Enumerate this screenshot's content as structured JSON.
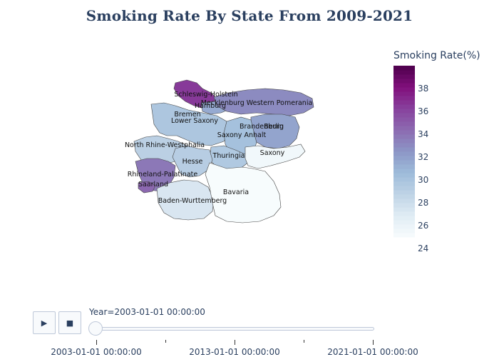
{
  "title": "Smoking Rate By State From 2009-2021",
  "colorbar": {
    "title": "Smoking Rate(%)",
    "min": 24,
    "max": 39,
    "ticks": [
      24,
      26,
      28,
      30,
      32,
      34,
      36,
      38
    ]
  },
  "chart_data": {
    "type": "choropleth",
    "title": "Smoking Rate By State From 2009-2021",
    "color_label": "Smoking Rate(%)",
    "regions": [
      {
        "name": "Schleswig-Holstein",
        "value": 35.5
      },
      {
        "name": "Hamburg",
        "value": 30.5
      },
      {
        "name": "Mecklenburg Western Pomerania",
        "value": 32.0
      },
      {
        "name": "Bremen",
        "value": 29.5
      },
      {
        "name": "Lower Saxony",
        "value": 28.8
      },
      {
        "name": "Berlin",
        "value": 38.5
      },
      {
        "name": "Brandenburg",
        "value": 30.8
      },
      {
        "name": "Saxony Anhalt",
        "value": 29.2
      },
      {
        "name": "North Rhine-Westphalia",
        "value": 28.0
      },
      {
        "name": "Thuringia",
        "value": 28.6
      },
      {
        "name": "Saxony",
        "value": 24.5
      },
      {
        "name": "Hesse",
        "value": 28.2
      },
      {
        "name": "Rhineland-Palatinate",
        "value": 32.8
      },
      {
        "name": "Saarland",
        "value": 33.5
      },
      {
        "name": "Baden-Wurttemberg",
        "value": 26.3
      },
      {
        "name": "Bavaria",
        "value": 24.0
      }
    ]
  },
  "animation": {
    "play_icon": "▶",
    "stop_icon": "■",
    "current_label": "Year=2003-01-01 00:00:00",
    "ticks": [
      {
        "label": "2003-01-01 00:00:00"
      },
      {
        "label": ""
      },
      {
        "label": "2013-01-01 00:00:00"
      },
      {
        "label": ""
      },
      {
        "label": "2021-01-01 00:00:00"
      }
    ]
  }
}
